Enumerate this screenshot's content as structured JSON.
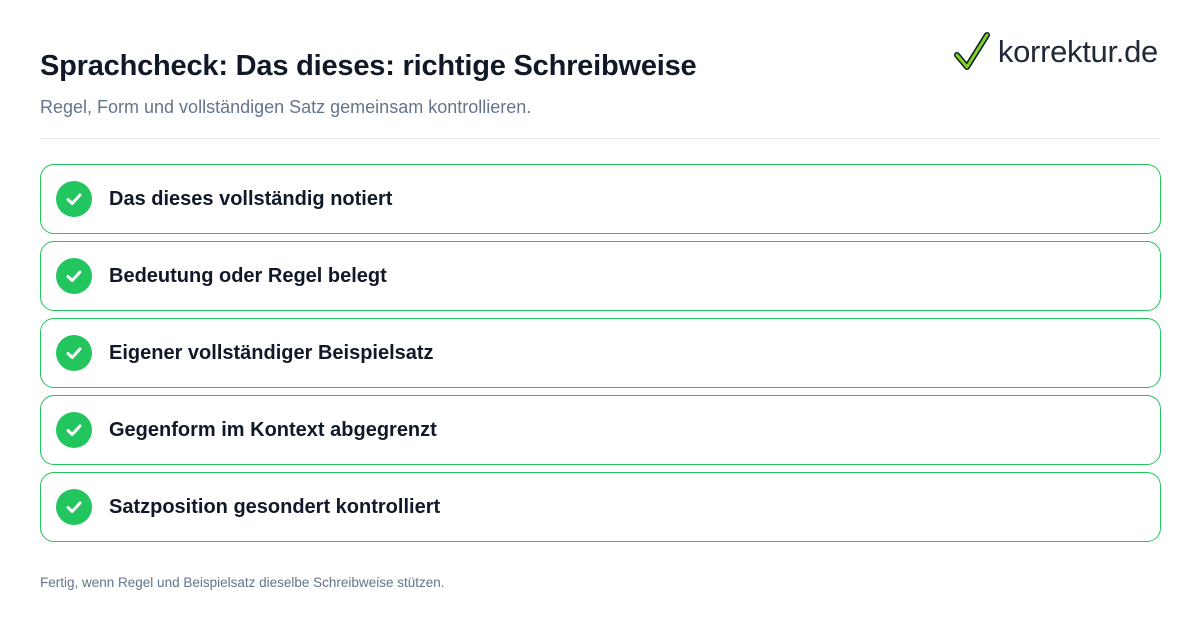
{
  "header": {
    "title": "Sprachcheck: Das dieses: richtige Schreibweise",
    "subtitle": "Regel, Form und vollständigen Satz gemeinsam kontrollieren."
  },
  "brand": {
    "name": "korrektur.de",
    "icon": "checkmark-icon",
    "accent_color": "#22c55e"
  },
  "checklist": {
    "items": [
      {
        "label": "Das dieses vollständig notiert",
        "checked": true
      },
      {
        "label": "Bedeutung oder Regel belegt",
        "checked": true
      },
      {
        "label": "Eigener vollständiger Beispielsatz",
        "checked": true
      },
      {
        "label": "Gegenform im Kontext abgegrenzt",
        "checked": true
      },
      {
        "label": "Satzposition gesondert kontrolliert",
        "checked": true
      }
    ]
  },
  "footer": {
    "note": "Fertig, wenn Regel und Beispielsatz dieselbe Schreibweise stützen."
  }
}
